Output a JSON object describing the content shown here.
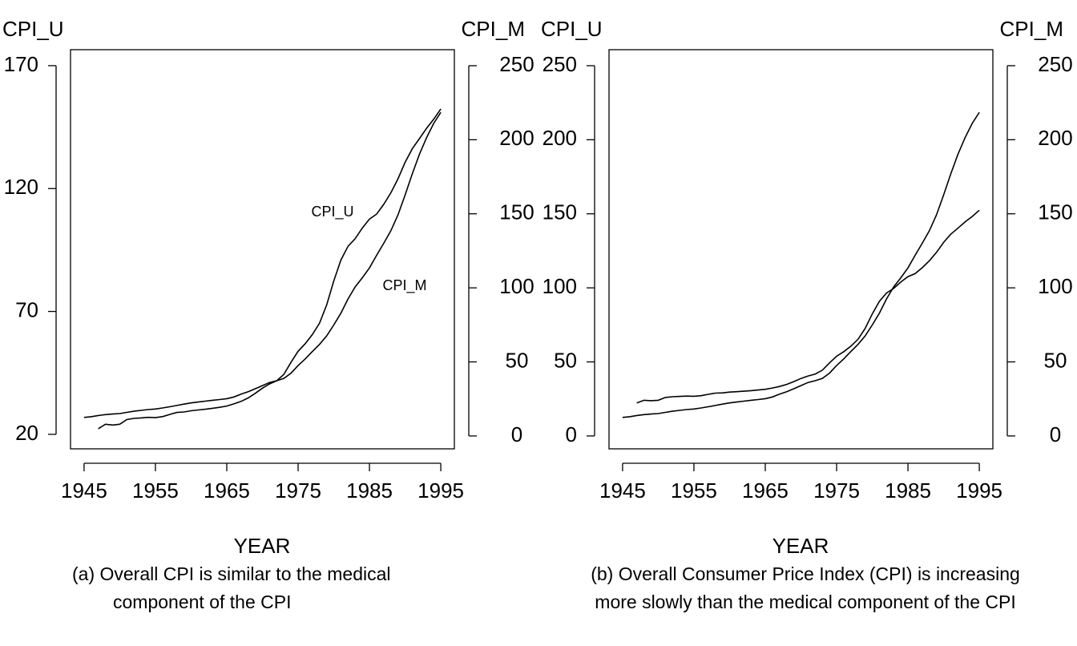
{
  "chart_data": [
    {
      "type": "line",
      "caption": [
        "(a)  Overall CPI is similar to the medical",
        "component of the CPI"
      ],
      "x_label": "YEAR",
      "y_label": "CPI_U",
      "y2_label": "CPI_M",
      "x": [
        1945,
        1946,
        1947,
        1948,
        1949,
        1950,
        1951,
        1952,
        1953,
        1954,
        1955,
        1956,
        1957,
        1958,
        1959,
        1960,
        1961,
        1962,
        1963,
        1964,
        1965,
        1966,
        1967,
        1968,
        1969,
        1970,
        1971,
        1972,
        1973,
        1974,
        1975,
        1976,
        1977,
        1978,
        1979,
        1980,
        1981,
        1982,
        1983,
        1984,
        1985,
        1986,
        1987,
        1988,
        1989,
        1990,
        1991,
        1992,
        1993,
        1994,
        1995
      ],
      "series": [
        {
          "name": "CPI_U",
          "color": "#000000",
          "axis": "y",
          "values": [
            null,
            null,
            22.3,
            24.1,
            23.8,
            24.1,
            26.0,
            26.5,
            26.7,
            26.9,
            26.8,
            27.2,
            28.1,
            28.9,
            29.1,
            29.6,
            29.9,
            30.2,
            30.6,
            31.0,
            31.5,
            32.4,
            33.4,
            34.8,
            36.7,
            38.8,
            40.5,
            41.8,
            44.4,
            49.3,
            53.8,
            56.9,
            60.6,
            65.2,
            72.6,
            82.4,
            90.9,
            96.5,
            99.6,
            103.9,
            107.6,
            109.6,
            113.6,
            118.3,
            124.0,
            130.7,
            136.2,
            140.3,
            144.5,
            148.2,
            152.4
          ]
        },
        {
          "name": "CPI_M",
          "color": "#000000",
          "axis": "y2",
          "values": [
            12.5,
            13.0,
            13.8,
            14.4,
            14.8,
            15.1,
            15.9,
            16.7,
            17.3,
            17.8,
            18.2,
            18.9,
            19.7,
            20.6,
            21.5,
            22.3,
            22.9,
            23.5,
            24.1,
            24.6,
            25.2,
            26.3,
            28.2,
            29.9,
            31.9,
            34.0,
            36.1,
            37.3,
            38.8,
            42.4,
            47.5,
            52.0,
            57.0,
            61.8,
            67.5,
            74.9,
            82.9,
            92.5,
            100.6,
            106.8,
            113.5,
            122.0,
            130.1,
            138.6,
            149.3,
            162.8,
            177.0,
            190.1,
            201.4,
            211.0,
            218.5
          ]
        }
      ],
      "xlim": [
        1943.1,
        1996.9
      ],
      "xticks": [
        1945,
        1955,
        1965,
        1975,
        1985,
        1995
      ],
      "ylim": [
        14.1,
        176.5
      ],
      "yticks": [
        20,
        70,
        120,
        170
      ],
      "y2lim": [
        -8.7,
        260.8
      ],
      "y2ticks": [
        0,
        50,
        100,
        150,
        200,
        250
      ]
    },
    {
      "type": "line",
      "caption": [
        "(b) Overall Consumer Price Index (CPI) is increasing",
        "more slowly than the medical component of the CPI"
      ],
      "x_label": "YEAR",
      "y_label": "CPI_U",
      "y2_label": "CPI_M",
      "x": [
        1945,
        1946,
        1947,
        1948,
        1949,
        1950,
        1951,
        1952,
        1953,
        1954,
        1955,
        1956,
        1957,
        1958,
        1959,
        1960,
        1961,
        1962,
        1963,
        1964,
        1965,
        1966,
        1967,
        1968,
        1969,
        1970,
        1971,
        1972,
        1973,
        1974,
        1975,
        1976,
        1977,
        1978,
        1979,
        1980,
        1981,
        1982,
        1983,
        1984,
        1985,
        1986,
        1987,
        1988,
        1989,
        1990,
        1991,
        1992,
        1993,
        1994,
        1995
      ],
      "series": [
        {
          "name": "CPI_U",
          "color": "#000000",
          "axis": "y",
          "values": [
            null,
            null,
            22.3,
            24.1,
            23.8,
            24.1,
            26.0,
            26.5,
            26.7,
            26.9,
            26.8,
            27.2,
            28.1,
            28.9,
            29.1,
            29.6,
            29.9,
            30.2,
            30.6,
            31.0,
            31.5,
            32.4,
            33.4,
            34.8,
            36.7,
            38.8,
            40.5,
            41.8,
            44.4,
            49.3,
            53.8,
            56.9,
            60.6,
            65.2,
            72.6,
            82.4,
            90.9,
            96.5,
            99.6,
            103.9,
            107.6,
            109.6,
            113.6,
            118.3,
            124.0,
            130.7,
            136.2,
            140.3,
            144.5,
            148.2,
            152.4
          ]
        },
        {
          "name": "CPI_M",
          "color": "#000000",
          "axis": "y2",
          "values": [
            12.5,
            13.0,
            13.8,
            14.4,
            14.8,
            15.1,
            15.9,
            16.7,
            17.3,
            17.8,
            18.2,
            18.9,
            19.7,
            20.6,
            21.5,
            22.3,
            22.9,
            23.5,
            24.1,
            24.6,
            25.2,
            26.3,
            28.2,
            29.9,
            31.9,
            34.0,
            36.1,
            37.3,
            38.8,
            42.4,
            47.5,
            52.0,
            57.0,
            61.8,
            67.5,
            74.9,
            82.9,
            92.5,
            100.6,
            106.8,
            113.5,
            122.0,
            130.1,
            138.6,
            149.3,
            162.8,
            177.0,
            190.1,
            201.4,
            211.0,
            218.5
          ]
        }
      ],
      "xlim": [
        1943.1,
        1996.9
      ],
      "xticks": [
        1945,
        1955,
        1965,
        1975,
        1985,
        1995
      ],
      "ylim": [
        -8.7,
        260.8
      ],
      "yticks": [
        0,
        50,
        100,
        150,
        200,
        250
      ],
      "y2lim": [
        -8.7,
        260.8
      ],
      "y2ticks": [
        0,
        50,
        100,
        150,
        200,
        250
      ]
    }
  ]
}
